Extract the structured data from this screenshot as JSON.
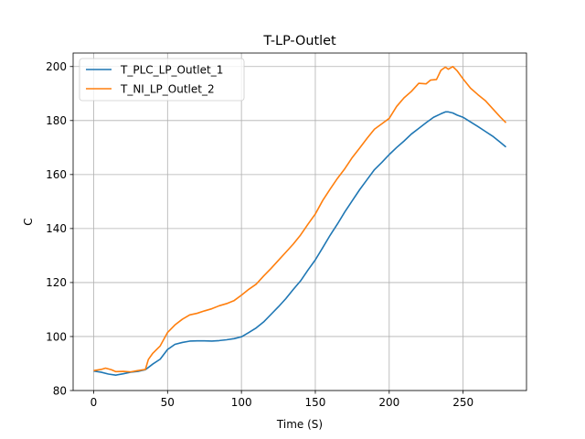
{
  "chart_data": {
    "type": "line",
    "title": "T-LP-Outlet",
    "xlabel": "Time (S)",
    "ylabel": "C",
    "xlim": [
      -13.9,
      292.9
    ],
    "ylim": [
      80,
      205
    ],
    "xticks": [
      0,
      50,
      100,
      150,
      200,
      250
    ],
    "yticks": [
      80,
      100,
      120,
      140,
      160,
      180,
      200
    ],
    "grid": true,
    "legend_position": "top-left",
    "series": [
      {
        "name": "T_PLC_LP_Outlet_1",
        "color": "#1f77b4",
        "x": [
          0,
          5,
          10,
          15,
          20,
          25,
          30,
          35,
          40,
          45,
          50,
          55,
          60,
          65,
          70,
          75,
          80,
          85,
          90,
          95,
          100,
          105,
          110,
          115,
          120,
          125,
          130,
          135,
          140,
          145,
          150,
          155,
          160,
          165,
          170,
          175,
          180,
          185,
          190,
          195,
          200,
          205,
          210,
          215,
          220,
          225,
          230,
          235,
          238,
          240,
          243,
          246,
          250,
          255,
          260,
          265,
          270,
          275,
          279
        ],
        "values": [
          87.2,
          86.8,
          86.1,
          85.7,
          86.2,
          86.8,
          87.1,
          87.7,
          89.8,
          91.6,
          95.2,
          97.1,
          97.8,
          98.3,
          98.4,
          98.4,
          98.3,
          98.5,
          98.8,
          99.2,
          99.9,
          101.5,
          103.2,
          105.4,
          108.2,
          111.0,
          114.0,
          117.4,
          120.6,
          124.6,
          128.4,
          132.9,
          137.5,
          141.7,
          146.2,
          150.3,
          154.4,
          158.1,
          161.8,
          164.5,
          167.4,
          170.0,
          172.4,
          175.0,
          177.1,
          179.2,
          181.2,
          182.5,
          183.2,
          183.2,
          182.8,
          182.0,
          181.2,
          179.5,
          177.8,
          176.0,
          174.2,
          172.0,
          170.2
        ]
      },
      {
        "name": "T_NI_LP_Outlet_2",
        "color": "#ff7f0e",
        "x": [
          0,
          5,
          8,
          12,
          15,
          20,
          25,
          30,
          35,
          37,
          40,
          45,
          50,
          55,
          60,
          65,
          70,
          75,
          80,
          85,
          90,
          95,
          100,
          105,
          110,
          115,
          120,
          125,
          130,
          135,
          140,
          145,
          150,
          155,
          160,
          165,
          170,
          175,
          180,
          185,
          190,
          195,
          200,
          205,
          210,
          215,
          220,
          225,
          228,
          232,
          235,
          238,
          240,
          243,
          246,
          250,
          255,
          260,
          265,
          270,
          275,
          279
        ],
        "values": [
          87.4,
          87.8,
          88.3,
          87.7,
          87.0,
          87.1,
          86.9,
          87.4,
          87.8,
          91.5,
          93.8,
          96.5,
          101.5,
          104.3,
          106.4,
          108.0,
          108.6,
          109.5,
          110.3,
          111.4,
          112.2,
          113.3,
          115.3,
          117.5,
          119.4,
          122.4,
          125.2,
          128.2,
          131.2,
          134.2,
          137.6,
          141.6,
          145.4,
          150.4,
          154.6,
          158.6,
          162.2,
          166.3,
          169.8,
          173.4,
          176.8,
          178.8,
          180.8,
          185.2,
          188.4,
          190.8,
          193.8,
          193.6,
          195.0,
          195.2,
          198.6,
          199.8,
          199.0,
          200.0,
          198.4,
          195.4,
          192.0,
          189.6,
          187.4,
          184.4,
          181.4,
          179.2
        ]
      }
    ]
  }
}
